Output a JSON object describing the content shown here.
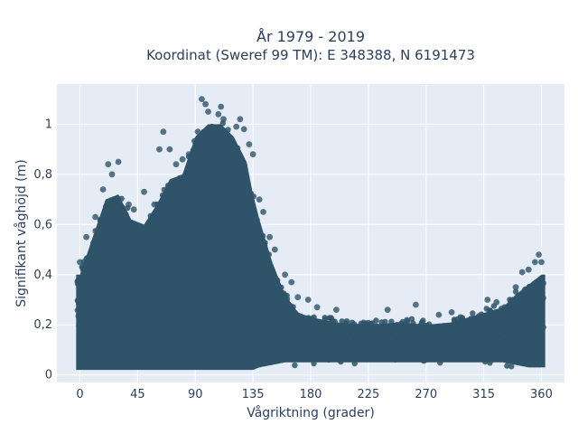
{
  "chart_data": {
    "type": "scatter",
    "title": [
      "År 1979 - 2019",
      "Koordinat (Sweref 99 TM): E 348388, N 6191473"
    ],
    "xlabel": "Vågriktning (grader)",
    "ylabel": "Signifikant våghöjd (m)",
    "xlim": [
      -18,
      378
    ],
    "ylim": [
      -0.03,
      1.16
    ],
    "xticks": [
      0,
      45,
      90,
      135,
      180,
      225,
      270,
      315,
      360
    ],
    "yticks": [
      0,
      0.2,
      0.4,
      0.6,
      0.8,
      1
    ],
    "ytick_labels": [
      "0",
      "0,2",
      "0,4",
      "0,6",
      "0,8",
      "1"
    ],
    "grid": true,
    "legend": "none",
    "colors": {
      "marker": "#2f5469",
      "plot_bg": "#e5ecf6",
      "grid": "#ffffff",
      "text": "#2a3f5f"
    },
    "envelope": {
      "x": [
        0,
        10,
        20,
        30,
        40,
        50,
        60,
        70,
        80,
        90,
        100,
        110,
        120,
        130,
        135,
        140,
        150,
        160,
        170,
        180,
        200,
        225,
        250,
        270,
        290,
        310,
        330,
        340,
        350,
        360
      ],
      "upper": [
        0.4,
        0.55,
        0.7,
        0.72,
        0.62,
        0.6,
        0.68,
        0.78,
        0.8,
        0.95,
        1.0,
        1.0,
        0.95,
        0.85,
        0.72,
        0.62,
        0.45,
        0.32,
        0.25,
        0.23,
        0.21,
        0.2,
        0.21,
        0.2,
        0.21,
        0.24,
        0.27,
        0.32,
        0.36,
        0.4
      ],
      "lower": [
        0.02,
        0.02,
        0.02,
        0.02,
        0.02,
        0.02,
        0.02,
        0.02,
        0.02,
        0.02,
        0.02,
        0.02,
        0.02,
        0.02,
        0.02,
        0.03,
        0.04,
        0.05,
        0.05,
        0.05,
        0.05,
        0.05,
        0.05,
        0.05,
        0.05,
        0.05,
        0.05,
        0.04,
        0.03,
        0.03
      ]
    },
    "outliers": {
      "x": [
        0,
        5,
        12,
        18,
        22,
        25,
        30,
        38,
        42,
        50,
        58,
        62,
        65,
        70,
        75,
        80,
        85,
        88,
        92,
        95,
        98,
        100,
        103,
        105,
        108,
        110,
        112,
        115,
        118,
        122,
        125,
        128,
        132,
        135,
        140,
        143,
        148,
        152,
        160,
        165,
        170,
        178,
        185,
        200,
        240,
        262,
        280,
        290,
        318,
        325,
        340,
        345,
        350,
        355,
        358,
        360
      ],
      "y": [
        0.45,
        0.55,
        0.63,
        0.74,
        0.84,
        0.8,
        0.85,
        0.68,
        0.66,
        0.73,
        0.68,
        0.9,
        0.97,
        0.9,
        0.84,
        0.86,
        0.88,
        0.85,
        0.97,
        1.1,
        1.08,
        1.05,
        0.99,
        0.95,
        1.04,
        1.07,
        1.02,
        0.95,
        0.92,
        0.99,
        1.02,
        0.98,
        0.92,
        0.88,
        0.7,
        0.65,
        0.55,
        0.5,
        0.4,
        0.37,
        0.31,
        0.3,
        0.27,
        0.26,
        0.26,
        0.28,
        0.24,
        0.25,
        0.3,
        0.29,
        0.35,
        0.41,
        0.42,
        0.45,
        0.48,
        0.45
      ]
    }
  }
}
